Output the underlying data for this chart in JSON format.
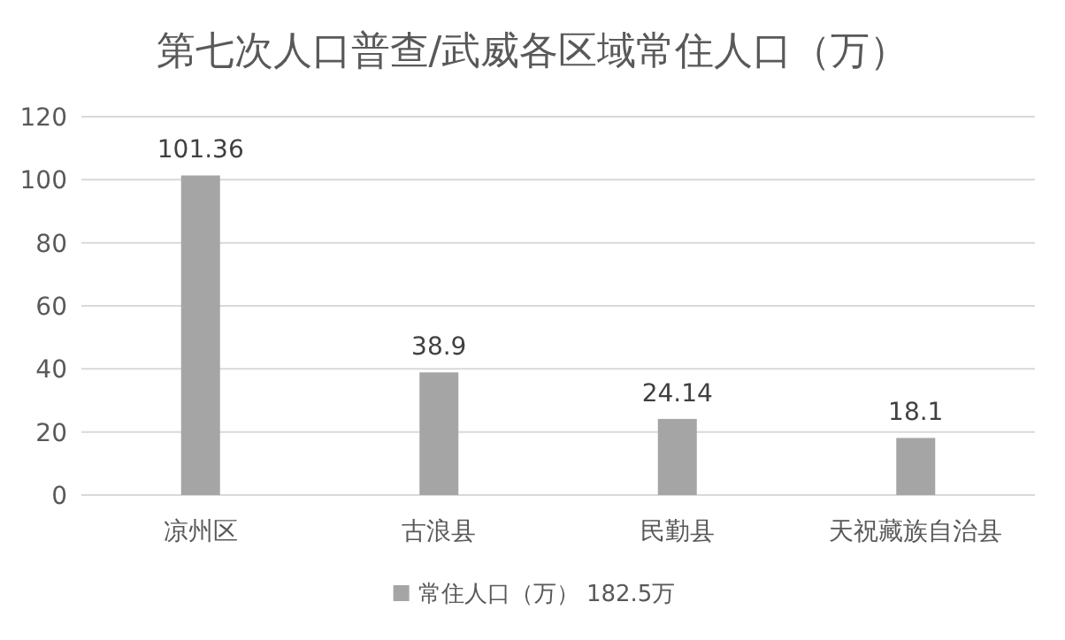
{
  "chart_data": {
    "type": "bar",
    "title": "第七次人口普查/武威各区域常住人口（万）",
    "categories": [
      "凉州区",
      "古浪县",
      "民勤县",
      "天祝藏族自治县"
    ],
    "series": [
      {
        "name": "常住人口（万） 182.5万",
        "color": "#a5a5a5",
        "values": [
          101.36,
          38.9,
          24.14,
          18.1
        ]
      }
    ],
    "ylim": [
      0,
      120
    ],
    "yticks": [
      0,
      20,
      40,
      60,
      80,
      100,
      120
    ],
    "grid": "y",
    "legend": "bottom",
    "data_labels": true
  }
}
